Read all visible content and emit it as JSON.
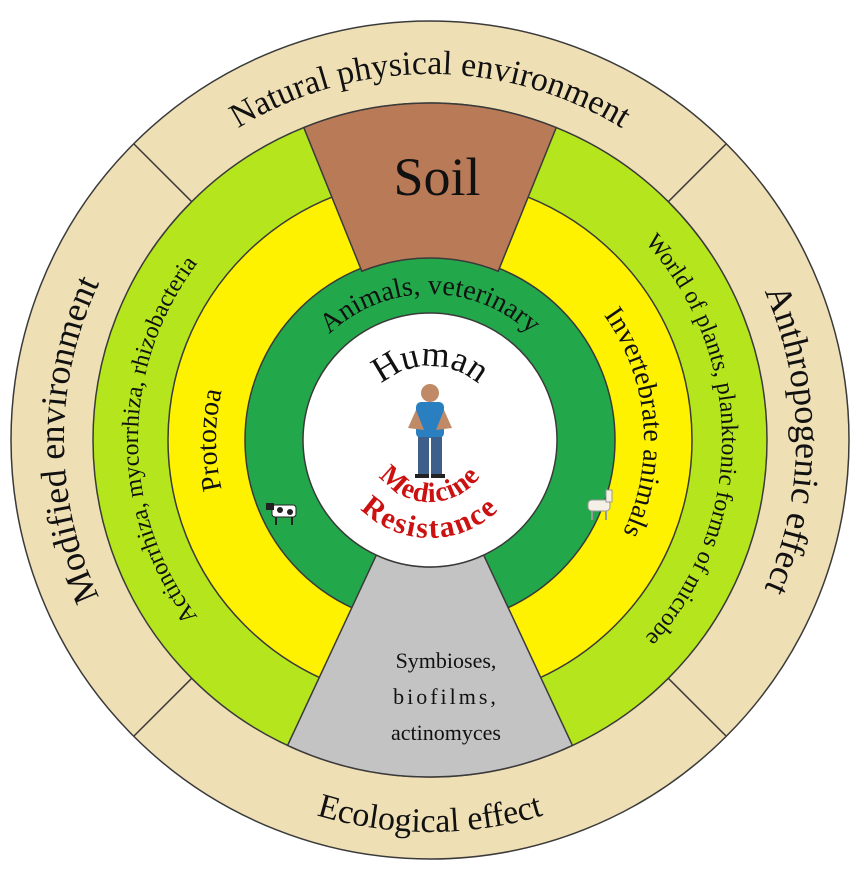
{
  "outer_ring": {
    "top": "Natural physical environment",
    "right": "Anthropogenic effect",
    "bottom": "Ecological effect",
    "left": "Modified environment"
  },
  "middle_ring": {
    "left": "Actinorrhiza, mycorrhiza, rhizobacteria",
    "right": "World of plants, planktonic forms of microbe"
  },
  "inner_ring": {
    "left": "Protozoa",
    "right": "Invertebrate animals"
  },
  "animal_ring": {
    "label": "Animals, veterinary"
  },
  "center": {
    "title": "Human",
    "labels": [
      "Medicine",
      "Resistance"
    ]
  },
  "soil": {
    "label": "Soil"
  },
  "bottom_wedge": {
    "lines": [
      "Symbioses,",
      "biofilms,",
      "actinomyces"
    ]
  }
}
